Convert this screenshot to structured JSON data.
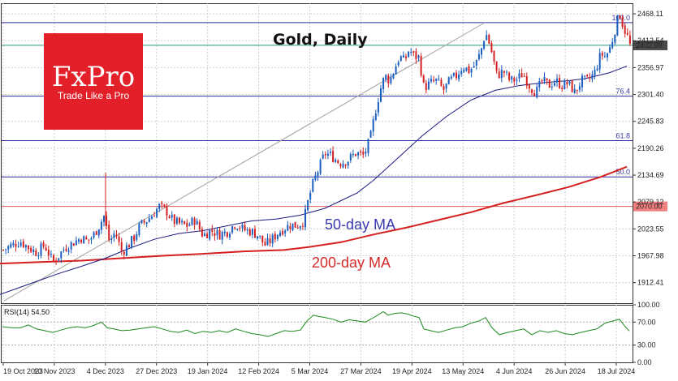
{
  "chart_data": {
    "type": "candlestick",
    "title": "Gold, Daily",
    "logo": {
      "name": "FxPro",
      "tagline": "Trade Like a Pro",
      "color": "#e3202a"
    },
    "y_ticks": [
      "2468.11",
      "2412.54",
      "2356.97",
      "2301.40",
      "2245.83",
      "2190.26",
      "2134.69",
      "2079.12",
      "2023.55",
      "1967.98",
      "1912.41"
    ],
    "ylim": [
      1870,
      2490
    ],
    "x_ticks": [
      "19 Oct 2023",
      "10 Nov 2023",
      "4 Dec 2023",
      "27 Dec 2023",
      "19 Jan 2024",
      "12 Feb 2024",
      "5 Mar 2024",
      "27 Mar 2024",
      "19 Apr 2024",
      "13 May 2024",
      "4 Jun 2024",
      "26 Jun 2024",
      "18 Jul 2024"
    ],
    "current_price": {
      "label": "2402.98",
      "value": 2402.98
    },
    "level_line": {
      "label": "2070.00",
      "value": 2070.0
    },
    "fib_levels": [
      {
        "label": "100.0",
        "value": 2450
      },
      {
        "label": "76.4",
        "value": 2298
      },
      {
        "label": "61.8",
        "value": 2206
      },
      {
        "label": "50.0",
        "value": 2131
      }
    ],
    "series_labels": {
      "ma50": "50-day MA",
      "ma200": "200-day MA"
    },
    "ma50_points": [
      [
        0,
        1888
      ],
      [
        20,
        1900
      ],
      [
        45,
        1915
      ],
      [
        70,
        1930
      ],
      [
        100,
        1946
      ],
      [
        130,
        1963
      ],
      [
        160,
        1984
      ],
      [
        190,
        2002
      ],
      [
        220,
        2014
      ],
      [
        250,
        2020
      ],
      [
        280,
        2030
      ],
      [
        310,
        2040
      ],
      [
        340,
        2044
      ],
      [
        370,
        2052
      ],
      [
        400,
        2066
      ],
      [
        420,
        2082
      ],
      [
        440,
        2098
      ],
      [
        460,
        2124
      ],
      [
        490,
        2170
      ],
      [
        520,
        2216
      ],
      [
        550,
        2256
      ],
      [
        580,
        2290
      ],
      [
        610,
        2310
      ],
      [
        640,
        2320
      ],
      [
        670,
        2326
      ],
      [
        700,
        2330
      ],
      [
        720,
        2334
      ],
      [
        750,
        2346
      ],
      [
        772,
        2360
      ]
    ],
    "ma200_points": [
      [
        0,
        1952
      ],
      [
        50,
        1955
      ],
      [
        100,
        1958
      ],
      [
        150,
        1963
      ],
      [
        200,
        1968
      ],
      [
        250,
        1972
      ],
      [
        300,
        1977
      ],
      [
        350,
        1980
      ],
      [
        380,
        1986
      ],
      [
        420,
        1996
      ],
      [
        460,
        2012
      ],
      [
        500,
        2026
      ],
      [
        540,
        2042
      ],
      [
        580,
        2058
      ],
      [
        620,
        2077
      ],
      [
        660,
        2093
      ],
      [
        700,
        2110
      ],
      [
        740,
        2131
      ],
      [
        772,
        2152
      ]
    ],
    "trendline": [
      [
        5,
        1875
      ],
      [
        597,
        2450
      ]
    ],
    "price_path": [
      [
        4,
        1980
      ],
      [
        15,
        1990
      ],
      [
        25,
        1998
      ],
      [
        35,
        1985
      ],
      [
        45,
        1975
      ],
      [
        55,
        1990
      ],
      [
        65,
        1955
      ],
      [
        72,
        1968
      ],
      [
        80,
        1985
      ],
      [
        90,
        1995
      ],
      [
        100,
        2005
      ],
      [
        108,
        1998
      ],
      [
        115,
        2010
      ],
      [
        122,
        2030
      ],
      [
        128,
        2050
      ],
      [
        135,
        1995
      ],
      [
        142,
        2018
      ],
      [
        150,
        1975
      ],
      [
        158,
        1990
      ],
      [
        165,
        2005
      ],
      [
        172,
        2030
      ],
      [
        180,
        2040
      ],
      [
        188,
        2053
      ],
      [
        196,
        2070
      ],
      [
        205,
        2060
      ],
      [
        213,
        2040
      ],
      [
        220,
        2035
      ],
      [
        230,
        2030
      ],
      [
        240,
        2042
      ],
      [
        250,
        2010
      ],
      [
        260,
        2020
      ],
      [
        270,
        2012
      ],
      [
        280,
        2018
      ],
      [
        290,
        2035
      ],
      [
        300,
        2022
      ],
      [
        310,
        2018
      ],
      [
        318,
        2010
      ],
      [
        326,
        1990
      ],
      [
        334,
        2000
      ],
      [
        342,
        2015
      ],
      [
        350,
        2025
      ],
      [
        358,
        2032
      ],
      [
        366,
        2030
      ],
      [
        374,
        2040
      ],
      [
        380,
        2085
      ],
      [
        386,
        2120
      ],
      [
        392,
        2145
      ],
      [
        400,
        2180
      ],
      [
        408,
        2175
      ],
      [
        418,
        2160
      ],
      [
        428,
        2165
      ],
      [
        438,
        2180
      ],
      [
        448,
        2175
      ],
      [
        456,
        2210
      ],
      [
        462,
        2265
      ],
      [
        468,
        2310
      ],
      [
        474,
        2340
      ],
      [
        480,
        2330
      ],
      [
        486,
        2355
      ],
      [
        492,
        2380
      ],
      [
        498,
        2370
      ],
      [
        504,
        2395
      ],
      [
        510,
        2380
      ],
      [
        516,
        2378
      ],
      [
        522,
        2315
      ],
      [
        530,
        2325
      ],
      [
        538,
        2330
      ],
      [
        546,
        2310
      ],
      [
        554,
        2330
      ],
      [
        562,
        2340
      ],
      [
        570,
        2360
      ],
      [
        578,
        2350
      ],
      [
        586,
        2365
      ],
      [
        592,
        2390
      ],
      [
        598,
        2430
      ],
      [
        604,
        2400
      ],
      [
        612,
        2340
      ],
      [
        620,
        2350
      ],
      [
        628,
        2330
      ],
      [
        636,
        2332
      ],
      [
        644,
        2345
      ],
      [
        652,
        2320
      ],
      [
        660,
        2305
      ],
      [
        668,
        2330
      ],
      [
        676,
        2320
      ],
      [
        684,
        2330
      ],
      [
        692,
        2320
      ],
      [
        700,
        2325
      ],
      [
        708,
        2305
      ],
      [
        716,
        2330
      ],
      [
        724,
        2330
      ],
      [
        732,
        2345
      ],
      [
        740,
        2385
      ],
      [
        746,
        2380
      ],
      [
        752,
        2400
      ],
      [
        758,
        2440
      ],
      [
        763,
        2470
      ],
      [
        768,
        2440
      ],
      [
        773,
        2420
      ],
      [
        775,
        2403
      ]
    ],
    "rsi": {
      "label": "RSI(14) 54.50",
      "y_ticks": [
        "100.00",
        "70.00",
        "30.00",
        "0.00"
      ],
      "ylim": [
        0,
        100
      ],
      "levels": [
        70,
        30
      ],
      "points": [
        [
          3,
          62
        ],
        [
          15,
          60
        ],
        [
          25,
          60
        ],
        [
          35,
          65
        ],
        [
          45,
          58
        ],
        [
          55,
          55
        ],
        [
          65,
          52
        ],
        [
          75,
          56
        ],
        [
          85,
          60
        ],
        [
          95,
          62
        ],
        [
          105,
          60
        ],
        [
          115,
          64
        ],
        [
          125,
          70
        ],
        [
          132,
          60
        ],
        [
          140,
          58
        ],
        [
          150,
          55
        ],
        [
          160,
          56
        ],
        [
          170,
          58
        ],
        [
          180,
          60
        ],
        [
          190,
          62
        ],
        [
          200,
          58
        ],
        [
          210,
          54
        ],
        [
          220,
          52
        ],
        [
          230,
          56
        ],
        [
          240,
          50
        ],
        [
          250,
          54
        ],
        [
          260,
          52
        ],
        [
          270,
          55
        ],
        [
          280,
          52
        ],
        [
          290,
          58
        ],
        [
          300,
          54
        ],
        [
          310,
          50
        ],
        [
          320,
          48
        ],
        [
          330,
          45
        ],
        [
          340,
          50
        ],
        [
          350,
          55
        ],
        [
          360,
          54
        ],
        [
          370,
          56
        ],
        [
          378,
          72
        ],
        [
          386,
          82
        ],
        [
          392,
          80
        ],
        [
          400,
          78
        ],
        [
          410,
          75
        ],
        [
          420,
          70
        ],
        [
          430,
          74
        ],
        [
          440,
          72
        ],
        [
          450,
          70
        ],
        [
          458,
          76
        ],
        [
          465,
          82
        ],
        [
          472,
          88
        ],
        [
          478,
          82
        ],
        [
          486,
          85
        ],
        [
          494,
          86
        ],
        [
          502,
          84
        ],
        [
          510,
          80
        ],
        [
          516,
          78
        ],
        [
          522,
          58
        ],
        [
          530,
          55
        ],
        [
          540,
          52
        ],
        [
          550,
          56
        ],
        [
          560,
          60
        ],
        [
          570,
          62
        ],
        [
          580,
          68
        ],
        [
          590,
          72
        ],
        [
          598,
          78
        ],
        [
          606,
          60
        ],
        [
          615,
          48
        ],
        [
          625,
          52
        ],
        [
          635,
          55
        ],
        [
          645,
          58
        ],
        [
          655,
          48
        ],
        [
          665,
          55
        ],
        [
          675,
          52
        ],
        [
          685,
          55
        ],
        [
          695,
          50
        ],
        [
          705,
          48
        ],
        [
          715,
          52
        ],
        [
          725,
          55
        ],
        [
          735,
          58
        ],
        [
          745,
          68
        ],
        [
          755,
          72
        ],
        [
          763,
          75
        ],
        [
          770,
          62
        ],
        [
          775,
          54.5
        ]
      ]
    }
  }
}
